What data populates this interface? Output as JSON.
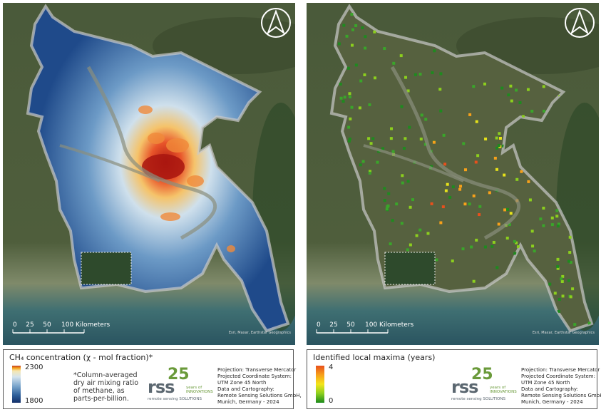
{
  "panels": [
    {
      "map": {
        "scale_bar": [
          "0",
          "25",
          "50",
          "100 Kilometers"
        ],
        "attribution": "Esri, Maxar, Earthstar Geographics"
      },
      "legend": {
        "title": "CH₄ concentration (χ - mol fraction)*",
        "max": 2300,
        "min": 1800,
        "note": "*Column-averaged dry air mixing ratio of methane, as parts-per-billion."
      },
      "logo": {
        "mark": "rss",
        "anniversary": "25",
        "tagline": "years of INNOVATIONS",
        "company": "remote sensing SOLUTIONS"
      },
      "credits": [
        "Projection: Transverse Mercator",
        "Projected Coordinate System:",
        "UTM Zone 45 North",
        "Data and Cartography:",
        "Remote Sensing Solutions GmbH,",
        "Munich, Germany - 2024"
      ]
    },
    {
      "map": {
        "scale_bar": [
          "0",
          "25",
          "50",
          "100 Kilometers"
        ],
        "attribution": "Esri, Maxar, Earthstar Geographics"
      },
      "legend": {
        "title": "Identified local maxima (years)",
        "max": 4,
        "min": 0
      },
      "logo": {
        "mark": "rss",
        "anniversary": "25",
        "tagline": "years of INNOVATIONS",
        "company": "remote sensing SOLUTIONS"
      },
      "credits": [
        "Projection: Transverse Mercator",
        "Projected Coordinate System:",
        "UTM Zone 45 North",
        "Data and Cartography:",
        "Remote Sensing Solutions GmbH,",
        "Munich, Germany - 2024"
      ]
    }
  ]
}
